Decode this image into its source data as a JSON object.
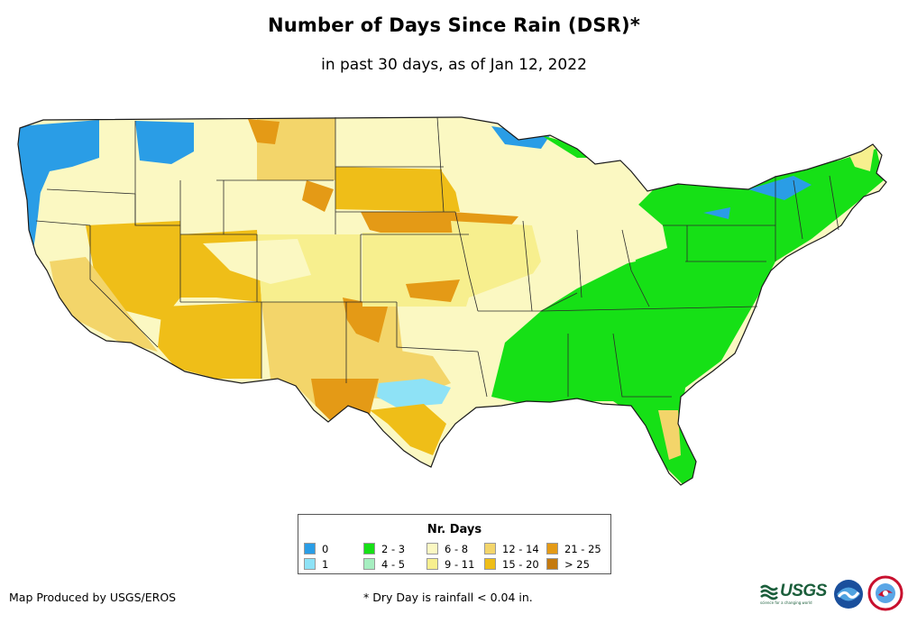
{
  "title": "Number of Days Since Rain (DSR)*",
  "subtitle": "in past 30 days, as of Jan 12, 2022",
  "legend": {
    "title": "Nr. Days",
    "items": [
      {
        "label": "0",
        "color": "#2a9de6"
      },
      {
        "label": "1",
        "color": "#8ee2f6"
      },
      {
        "label": "2 - 3",
        "color": "#16e016"
      },
      {
        "label": "4 - 5",
        "color": "#a6eec0"
      },
      {
        "label": "6 - 8",
        "color": "#fbf8c2"
      },
      {
        "label": "9 - 11",
        "color": "#f7ef8e"
      },
      {
        "label": "12 - 14",
        "color": "#f3d56a"
      },
      {
        "label": "15 - 20",
        "color": "#efbe18"
      },
      {
        "label": "21 - 25",
        "color": "#e49a16"
      },
      {
        "label": "> 25",
        "color": "#c47a10"
      }
    ]
  },
  "footer": {
    "credit": "Map Produced by USGS/EROS",
    "footnote": "* Dry Day is rainfall < 0.04 in."
  },
  "logos": {
    "usgs": "USGS",
    "usgs_tagline": "science for a changing world"
  },
  "colors": {
    "border": "#222222",
    "map_background": "#ffffff"
  }
}
